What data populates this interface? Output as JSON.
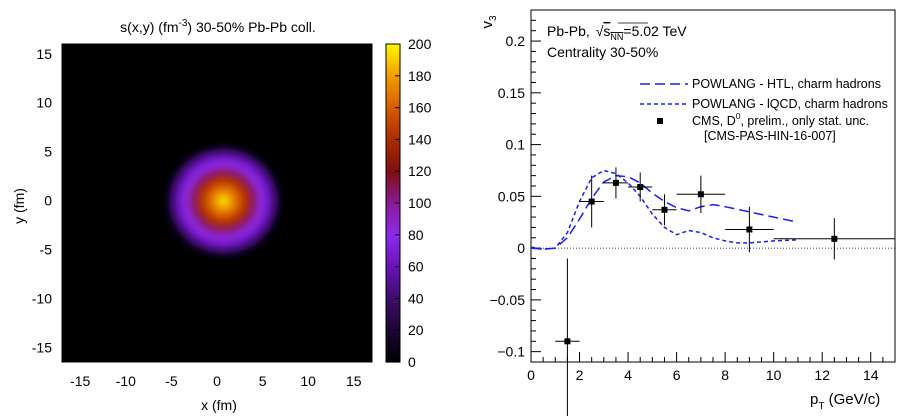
{
  "chart_data": [
    {
      "type": "heatmap",
      "title_main": "s(x,y) (fm",
      "title_exp": "-3",
      "title_rest": ") 30-50% Pb-Pb coll.",
      "xlabel": "x (fm)",
      "ylabel": "y (fm)",
      "xlim": [
        -17,
        17
      ],
      "ylim": [
        -16.5,
        16
      ],
      "xticks": [
        -15,
        -10,
        -5,
        0,
        5,
        10,
        15
      ],
      "yticks": [
        -15,
        -10,
        -5,
        0,
        5,
        10,
        15
      ],
      "colorbar": {
        "range": [
          0,
          200
        ],
        "ticks": [
          0,
          20,
          40,
          60,
          80,
          100,
          120,
          140,
          160,
          180,
          200
        ],
        "palette": [
          "#000000",
          "#1c0733",
          "#3d0c6e",
          "#6a12b8",
          "#8d2aea",
          "#8a1a9a",
          "#7d1010",
          "#a82a00",
          "#d65a00",
          "#f09a00",
          "#fff200"
        ]
      },
      "source": {
        "center": [
          0,
          0
        ],
        "peak": 200,
        "shape": "triangular",
        "radius_fm": 4
      }
    },
    {
      "type": "line",
      "xlabel_main": "p",
      "xlabel_sub": "T",
      "xlabel_rest": " (GeV/c)",
      "ylabel_main": "v",
      "ylabel_sub": "3",
      "xlim": [
        0,
        15
      ],
      "ylim": [
        -0.11,
        0.23
      ],
      "xticks": [
        0,
        2,
        4,
        6,
        8,
        10,
        12,
        14
      ],
      "yticks": [
        -0.1,
        -0.05,
        0,
        0.05,
        0.1,
        0.15,
        0.2
      ],
      "ytick_labels": [
        "−0.1",
        "−0.05",
        "0",
        "0.05",
        "0.1",
        "0.15",
        "0.2"
      ],
      "annotations": {
        "system_pre": "Pb-Pb, ",
        "sqrt_s": "s",
        "sqrt_sub": "NN",
        "energy": "=5.02 TeV",
        "centrality": "Centrality 30-50%"
      },
      "series": [
        {
          "name": "POWLANG - HTL, charm hadrons",
          "style": "long-dash",
          "x": [
            0,
            0.5,
            1,
            1.5,
            2,
            2.5,
            3,
            3.5,
            4,
            4.5,
            5,
            5.5,
            6,
            6.5,
            7,
            7.5,
            8,
            9,
            10,
            11
          ],
          "y": [
            0,
            -0.001,
            0,
            0.01,
            0.028,
            0.048,
            0.064,
            0.07,
            0.069,
            0.063,
            0.053,
            0.045,
            0.039,
            0.036,
            0.04,
            0.042,
            0.04,
            0.035,
            0.03,
            0.025
          ]
        },
        {
          "name": "POWLANG - lQCD, charm hadrons",
          "style": "short-dash",
          "x": [
            0,
            0.5,
            1,
            1.5,
            2,
            2.5,
            3,
            3.5,
            4,
            4.5,
            5,
            5.5,
            6,
            6.5,
            7,
            7.5,
            8,
            8.5,
            9,
            10,
            11
          ],
          "y": [
            0.001,
            -0.001,
            0,
            0.015,
            0.045,
            0.068,
            0.075,
            0.072,
            0.063,
            0.05,
            0.033,
            0.02,
            0.013,
            0.017,
            0.015,
            0.01,
            0.007,
            0.005,
            0.005,
            0.007,
            0.008
          ]
        }
      ],
      "points": {
        "name": "CMS, D",
        "name_sup": "0",
        "name_rest": ", prelim., only stat. unc.",
        "reference": "[CMS-PAS-HIN-16-007]",
        "x": [
          1.5,
          2.5,
          3.5,
          4.5,
          5.5,
          7,
          9,
          12.5
        ],
        "y": [
          -0.09,
          0.045,
          0.063,
          0.059,
          0.037,
          0.052,
          0.018,
          0.009
        ],
        "xerr": [
          0.5,
          0.5,
          0.5,
          0.5,
          0.5,
          1,
          1,
          2.5
        ],
        "yerr": [
          0.08,
          0.025,
          0.015,
          0.014,
          0.015,
          0.018,
          0.022,
          0.02
        ]
      }
    }
  ]
}
